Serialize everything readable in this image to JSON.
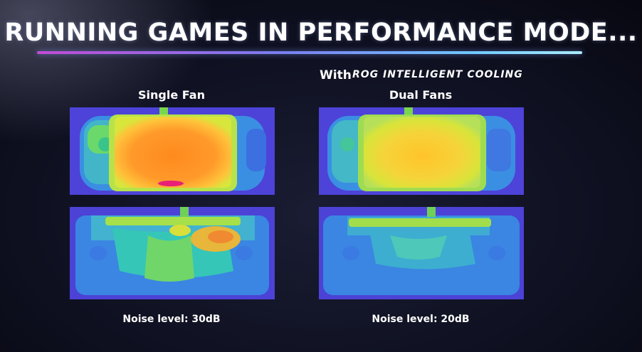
{
  "slide": {
    "title": "RUNNING GAMES IN PERFORMANCE MODE...",
    "with_label": "With",
    "rog_tag": "ROG INTELLIGENT COOLING",
    "colors": {
      "title": "#ffffff",
      "underline_start": "#c24bd6",
      "underline_end": "#a9ecff"
    }
  },
  "columns": [
    {
      "label": "Single Fan",
      "noise": "Noise level: 30dB"
    },
    {
      "label": "Dual Fans",
      "noise": "Noise level: 20dB"
    }
  ],
  "images": [
    {
      "name": "single-fan-front-thermal"
    },
    {
      "name": "single-fan-back-thermal"
    },
    {
      "name": "dual-fans-front-thermal"
    },
    {
      "name": "dual-fans-back-thermal"
    }
  ]
}
